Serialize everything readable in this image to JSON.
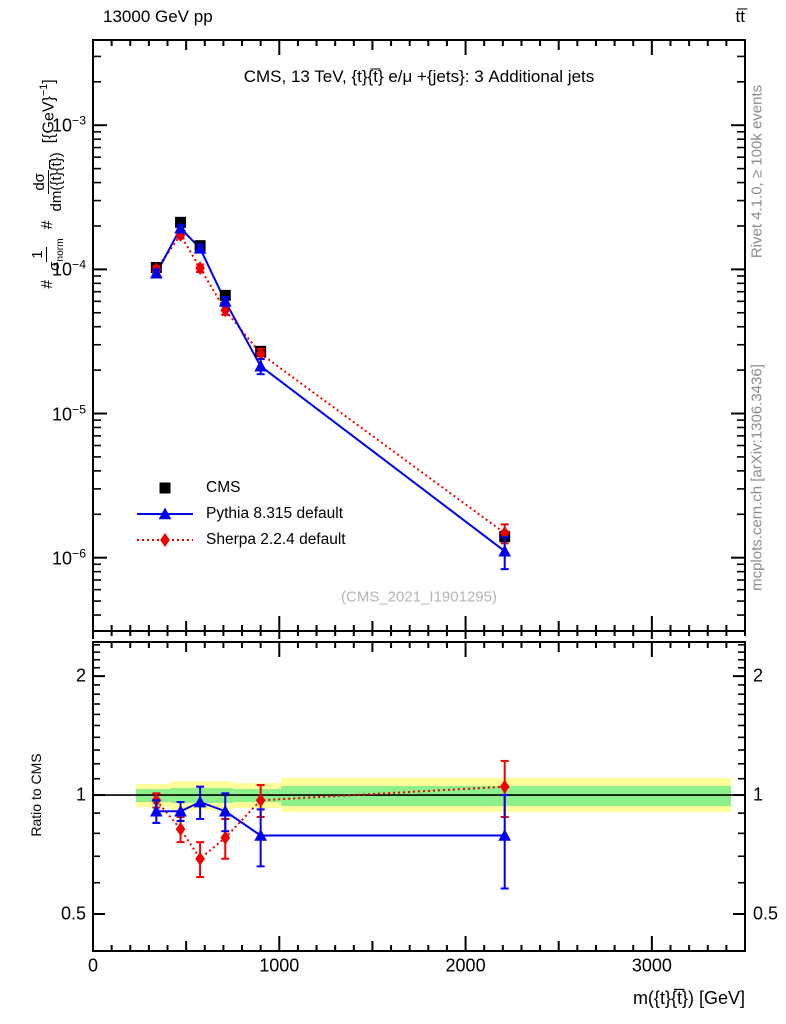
{
  "chart_data": {
    "type": "line",
    "header_left": "13000 GeV pp",
    "header_right": "tt̅",
    "title": "CMS, 13 TeV, {t}{t̅} e/μ +{jets}: 3 Additional jets",
    "watermark": "(CMS_2021_I1901295)",
    "xlabel": "m({t}{t̅}) [GeV]",
    "ylabel": {
      "prefix1": "#",
      "frac1_num": "1",
      "frac1_den_base": "σ",
      "frac1_den_sub": "norm",
      "prefix2": "#",
      "frac2_num": "dσ",
      "frac2_den": "dm({t}{t̅})",
      "units_base": "[{GeV}",
      "units_sup": "−1",
      "units_close": "]"
    },
    "ratio_ylabel": "Ratio to CMS",
    "right_note_top": "Rivet 4.1.0, ≥ 100k events",
    "right_note_bottom": "mcplots.cern.ch [arXiv:1306.3436]",
    "x_range": [
      0,
      3500
    ],
    "x_ticks": [
      0,
      1000,
      2000,
      3000
    ],
    "x_minor_step": 100,
    "y_main_range": [
      3.1e-07,
      0.0039
    ],
    "y_main_decades": [
      -3,
      -4,
      -5,
      -6
    ],
    "ratio_range": [
      0.403,
      2.44
    ],
    "ratio_ticks": [
      2,
      1,
      0.5
    ],
    "x": [
      340,
      470,
      575,
      710,
      900,
      2210
    ],
    "series": [
      {
        "name": "CMS",
        "color": "#000000",
        "marker": "square",
        "line": "none",
        "values": [
          0.000103,
          0.000212,
          0.000146,
          6.6e-05,
          2.7e-05,
          1.4e-06
        ],
        "err_frac": [
          0.06,
          0.05,
          0.05,
          0.06,
          0.07,
          0.1
        ]
      },
      {
        "name": "Pythia 8.315 default",
        "color": "#0000ee",
        "marker": "triangle",
        "line": "solid",
        "values": [
          9.4e-05,
          0.000193,
          0.00014,
          6e-05,
          2.13e-05,
          1.11e-06
        ],
        "err_frac": [
          0.06,
          0.05,
          0.06,
          0.07,
          0.12,
          0.25
        ],
        "ratio": [
          0.91,
          0.91,
          0.96,
          0.91,
          0.79,
          0.79
        ],
        "ratio_err": [
          0.06,
          0.05,
          0.09,
          0.1,
          0.13,
          0.21
        ]
      },
      {
        "name": "Sherpa 2.2.4 default",
        "color": "#ee0000",
        "marker": "diamond",
        "line": "dotted",
        "values": [
          0.0001,
          0.000173,
          0.000102,
          5.2e-05,
          2.6e-05,
          1.48e-06
        ],
        "err_frac": [
          0.05,
          0.05,
          0.06,
          0.07,
          0.08,
          0.15
        ],
        "ratio": [
          0.97,
          0.82,
          0.69,
          0.78,
          0.97,
          1.05
        ],
        "ratio_err": [
          0.04,
          0.06,
          0.07,
          0.09,
          0.09,
          0.17
        ]
      }
    ],
    "ratio_bands": {
      "yellow": "#ffff99",
      "green": "#8df08d",
      "segments": [
        {
          "x0": 231,
          "x1": 419,
          "yellow": [
            0.932,
            1.066
          ],
          "green": [
            0.96,
            1.036
          ]
        },
        {
          "x0": 419,
          "x1": 751,
          "yellow": [
            0.916,
            1.085
          ],
          "green": [
            0.955,
            1.042
          ]
        },
        {
          "x0": 751,
          "x1": 1009,
          "yellow": [
            0.927,
            1.072
          ],
          "green": [
            0.96,
            1.036
          ]
        },
        {
          "x0": 1009,
          "x1": 3425,
          "yellow": [
            0.906,
            1.105
          ],
          "green": [
            0.938,
            1.054
          ]
        }
      ]
    },
    "ratio_reference": 1
  }
}
